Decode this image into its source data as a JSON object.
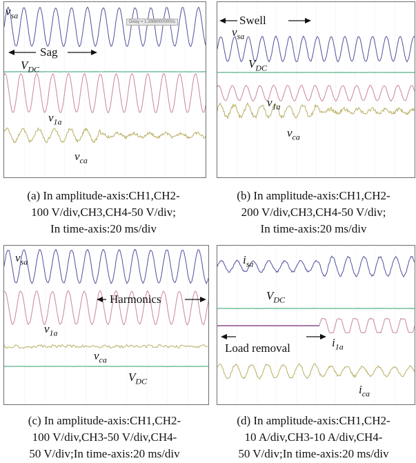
{
  "panels": [
    {
      "id": "a",
      "caption_lines": [
        "(a) In amplitude-axis:CH1,CH2-",
        "100 V/div,CH3,CH4-50 V/div;",
        "In time-axis:20 ms/div"
      ],
      "arrow_label": "Sag",
      "delay_text": "Delay = 1.39880000000s",
      "labels": {
        "vsa": "v",
        "vsa_sub": "sa",
        "vdc": "V",
        "vdc_sub": "DC",
        "v1a": "v",
        "v1a_sub": "1a",
        "vca": "v",
        "vca_sub": "ca"
      }
    },
    {
      "id": "b",
      "caption_lines": [
        "(b) In amplitude-axis:CH1,CH2-",
        "200 V/div,CH3,CH4-50 V/div;",
        "In time-axis:20 ms/div"
      ],
      "arrow_label": "Swell",
      "labels": {
        "vsa": "v",
        "vsa_sub": "sa",
        "vdc": "V",
        "vdc_sub": "DC",
        "v1a": "v",
        "v1a_sub": "1a",
        "vca": "v",
        "vca_sub": "ca"
      }
    },
    {
      "id": "c",
      "caption_lines": [
        "(c) In amplitude-axis:CH1,CH2-",
        "100 V/div,CH3-50 V/div,CH4-",
        "50 V/div;In time-axis:20 ms/div"
      ],
      "arrow_label": "Harmonics",
      "labels": {
        "vsa": "v",
        "vsa_sub": "sa",
        "vdc": "V",
        "vdc_sub": "DC",
        "v1a": "v",
        "v1a_sub": "1a",
        "vca": "v",
        "vca_sub": "ca"
      }
    },
    {
      "id": "d",
      "caption_lines": [
        "(d) In amplitude-axis:CH1,CH2-",
        "10 A/div,CH3-10 A/div,CH4-",
        "50 V/div;In time-axis:20 ms/div"
      ],
      "arrow_label": "Load removal",
      "labels": {
        "isa": "i",
        "isa_sub": "sa",
        "vdc": "V",
        "vdc_sub": "DC",
        "i1a": "i",
        "i1a_sub": "1a",
        "ica": "i",
        "ica_sub": "ca"
      }
    }
  ],
  "colors": {
    "ch1": "#4d4f9c",
    "ch2": "#c9839d",
    "ch3": "#b9ad62",
    "ch4": "#7cc3a2",
    "ch2d": "#8a4a8a"
  }
}
